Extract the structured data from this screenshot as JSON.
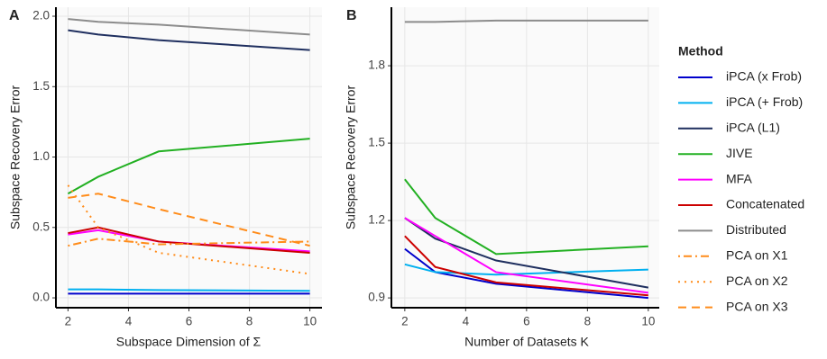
{
  "legend": {
    "title": "Method",
    "position": "right"
  },
  "chart_data": [
    {
      "type": "line",
      "panel": "A",
      "x_label": "Subspace Dimension of Σ",
      "y_label": "Subspace Recovery Error",
      "x": [
        2,
        3,
        5,
        10
      ],
      "xlim": [
        1.6,
        10.4
      ],
      "xticks": [
        2,
        4,
        6,
        8,
        10
      ],
      "ylim": [
        -0.07,
        2.064
      ],
      "yticks": [
        {
          "value": 0,
          "label": "0.0"
        },
        {
          "value": 0.5,
          "label": "0.5"
        },
        {
          "value": 1,
          "label": "1.0"
        },
        {
          "value": 1.5,
          "label": "1.5"
        },
        {
          "value": 2,
          "label": "2.0"
        }
      ],
      "grid": true,
      "series": [
        {
          "name": "iPCA (x Frob)",
          "color": "#0000cc",
          "dash": "solid",
          "values": [
            0.03,
            0.03,
            0.03,
            0.03
          ]
        },
        {
          "name": "iPCA (+ Frob)",
          "color": "#00b0f0",
          "dash": "solid",
          "values": [
            0.06,
            0.06,
            0.055,
            0.05
          ]
        },
        {
          "name": "iPCA (L1)",
          "color": "#1f2f5f",
          "dash": "solid",
          "values": [
            1.9,
            1.87,
            1.83,
            1.76
          ]
        },
        {
          "name": "JIVE",
          "color": "#22b022",
          "dash": "solid",
          "values": [
            0.74,
            0.86,
            1.04,
            1.13
          ]
        },
        {
          "name": "MFA",
          "color": "#ff00ff",
          "dash": "solid",
          "values": [
            0.45,
            0.48,
            0.4,
            0.33
          ]
        },
        {
          "name": "Concatenated",
          "color": "#cc0000",
          "dash": "solid",
          "values": [
            0.46,
            0.5,
            0.4,
            0.32
          ]
        },
        {
          "name": "Distributed",
          "color": "#8c8c8c",
          "dash": "solid",
          "values": [
            1.98,
            1.96,
            1.94,
            1.87
          ]
        },
        {
          "name": "PCA on X1",
          "color": "#ff8c1a",
          "dash": "dotdash",
          "values": [
            0.37,
            0.42,
            0.38,
            0.4
          ]
        },
        {
          "name": "PCA on X2",
          "color": "#ff8c1a",
          "dash": "dotted",
          "values": [
            0.8,
            0.5,
            0.32,
            0.17
          ]
        },
        {
          "name": "PCA on X3",
          "color": "#ff8c1a",
          "dash": "dashed",
          "values": [
            0.71,
            0.74,
            0.63,
            0.37
          ]
        }
      ]
    },
    {
      "type": "line",
      "panel": "B",
      "x_label": "Number of Datasets K",
      "y_label": "Subspace Recovery Error",
      "x": [
        2,
        3,
        5,
        10
      ],
      "xlim": [
        1.56,
        10.36
      ],
      "xticks": [
        2,
        4,
        6,
        8,
        10
      ],
      "ylim": [
        0.862,
        2.027
      ],
      "yticks": [
        0.9,
        1.2,
        1.5,
        1.8
      ],
      "grid": true,
      "series": [
        {
          "values": [
            1.09,
            1.0,
            0.955,
            0.9
          ]
        },
        {
          "values": [
            1.03,
            1.0,
            0.99,
            1.01
          ]
        },
        {
          "values": [
            1.21,
            1.13,
            1.045,
            0.94
          ]
        },
        {
          "values": [
            1.36,
            1.21,
            1.07,
            1.1
          ]
        },
        {
          "values": [
            1.21,
            1.14,
            1.0,
            0.92
          ]
        },
        {
          "values": [
            1.14,
            1.02,
            0.96,
            0.91
          ]
        },
        {
          "values": [
            1.97,
            1.97,
            1.975,
            1.975
          ]
        }
      ]
    }
  ]
}
